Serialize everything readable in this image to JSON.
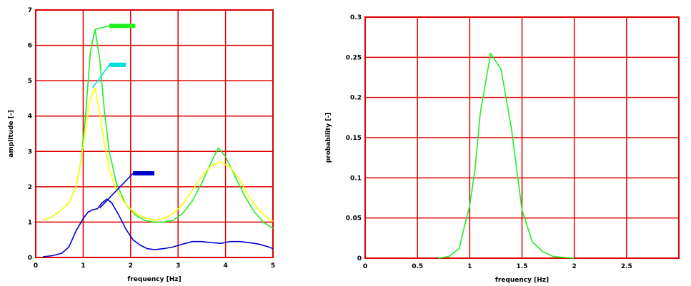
{
  "chart_data": [
    {
      "type": "line",
      "title": "",
      "xlabel": "frequency [Hz]",
      "ylabel": "amplitude [-]",
      "xlim": [
        0,
        5
      ],
      "ylim": [
        0,
        7
      ],
      "xticks": [
        0,
        1,
        2,
        3,
        4,
        5
      ],
      "yticks": [
        0,
        1,
        2,
        3,
        4,
        5,
        6,
        7
      ],
      "xtick_labels": [
        "0",
        "1",
        "2",
        "3",
        "4",
        "5"
      ],
      "ytick_labels": [
        "0",
        "1",
        "2",
        "3",
        "4",
        "5",
        "6",
        "7"
      ],
      "grid": true,
      "colors": {
        "grid": "#dd0000",
        "frame": "#dd0000"
      },
      "series": [
        {
          "color": "#22ee22",
          "x": [
            0.15,
            0.3,
            0.5,
            0.7,
            0.85,
            0.95,
            1.05,
            1.15,
            1.25,
            1.35,
            1.45,
            1.55,
            1.7,
            1.9,
            2.1,
            2.3,
            2.5,
            2.7,
            2.9,
            3.1,
            3.3,
            3.5,
            3.7,
            3.85,
            4.0,
            4.2,
            4.4,
            4.6,
            4.8,
            5.0
          ],
          "y": [
            1.05,
            1.12,
            1.3,
            1.55,
            2.0,
            2.7,
            4.0,
            5.8,
            6.45,
            5.6,
            4.1,
            3.0,
            2.1,
            1.5,
            1.2,
            1.05,
            1.0,
            1.0,
            1.05,
            1.25,
            1.6,
            2.1,
            2.7,
            3.1,
            2.85,
            2.3,
            1.75,
            1.3,
            1.0,
            0.82
          ]
        },
        {
          "color": "#ffff00",
          "x": [
            0.15,
            0.3,
            0.5,
            0.7,
            0.85,
            0.95,
            1.05,
            1.15,
            1.25,
            1.35,
            1.45,
            1.55,
            1.7,
            1.9,
            2.1,
            2.3,
            2.5,
            2.7,
            2.9,
            3.1,
            3.3,
            3.5,
            3.7,
            3.9,
            4.1,
            4.3,
            4.5,
            4.7,
            4.9,
            5.0
          ],
          "y": [
            1.05,
            1.12,
            1.3,
            1.55,
            2.0,
            2.7,
            3.6,
            4.5,
            4.8,
            4.1,
            3.2,
            2.5,
            1.9,
            1.5,
            1.25,
            1.12,
            1.05,
            1.1,
            1.25,
            1.5,
            1.9,
            2.3,
            2.6,
            2.7,
            2.55,
            2.2,
            1.7,
            1.35,
            1.1,
            1.02
          ]
        },
        {
          "color": "#0000cc",
          "x": [
            0.15,
            0.35,
            0.55,
            0.7,
            0.85,
            1.0,
            1.1,
            1.2,
            1.3,
            1.4,
            1.5,
            1.6,
            1.75,
            1.9,
            2.05,
            2.2,
            2.35,
            2.5,
            2.7,
            2.9,
            3.1,
            3.3,
            3.5,
            3.7,
            3.9,
            4.1,
            4.3,
            4.5,
            4.7,
            4.9,
            5.0
          ],
          "y": [
            0.02,
            0.05,
            0.12,
            0.3,
            0.75,
            1.1,
            1.28,
            1.35,
            1.38,
            1.55,
            1.65,
            1.55,
            1.2,
            0.8,
            0.5,
            0.35,
            0.25,
            0.22,
            0.25,
            0.3,
            0.38,
            0.45,
            0.45,
            0.42,
            0.4,
            0.45,
            0.45,
            0.42,
            0.38,
            0.3,
            0.25
          ]
        }
      ],
      "annotations": [
        {
          "color": "#22ee22",
          "from": [
            1.25,
            6.45
          ],
          "to": [
            1.55,
            6.55
          ],
          "box_to": [
            2.1,
            6.55
          ]
        },
        {
          "color": "#00dddd",
          "from": [
            1.2,
            4.8
          ],
          "to": [
            1.55,
            5.45
          ],
          "box_to": [
            1.9,
            5.45
          ]
        },
        {
          "color": "#0000cc",
          "from": [
            1.35,
            1.4
          ],
          "to": [
            2.05,
            2.38
          ],
          "box_to": [
            2.5,
            2.38
          ]
        }
      ]
    },
    {
      "type": "line",
      "title": "",
      "xlabel": "frequency [Hz]",
      "ylabel": "probability [-]",
      "xlim": [
        0,
        3
      ],
      "ylim": [
        0,
        0.3
      ],
      "xticks": [
        0,
        0.5,
        1,
        1.5,
        2,
        2.5,
        3
      ],
      "yticks": [
        0,
        0.05,
        0.1,
        0.15,
        0.2,
        0.25,
        0.3
      ],
      "xtick_labels": [
        "0",
        "0.5",
        "1",
        "1.5",
        "2",
        "2.5",
        ""
      ],
      "ytick_labels": [
        "0",
        "0.05",
        "0.1",
        "0.15",
        "0.2",
        "0.25",
        "0.3"
      ],
      "grid": true,
      "colors": {
        "grid": "#dd0000",
        "frame": "#dd0000"
      },
      "series": [
        {
          "color": "#22ee22",
          "x": [
            0.7,
            0.8,
            0.9,
            0.95,
            1.0,
            1.05,
            1.1,
            1.2,
            1.3,
            1.4,
            1.5,
            1.6,
            1.7,
            1.8,
            1.9,
            2.0
          ],
          "y": [
            0.0,
            0.002,
            0.012,
            0.04,
            0.065,
            0.11,
            0.18,
            0.255,
            0.235,
            0.16,
            0.06,
            0.02,
            0.008,
            0.002,
            0.001,
            0.0
          ]
        }
      ]
    }
  ]
}
